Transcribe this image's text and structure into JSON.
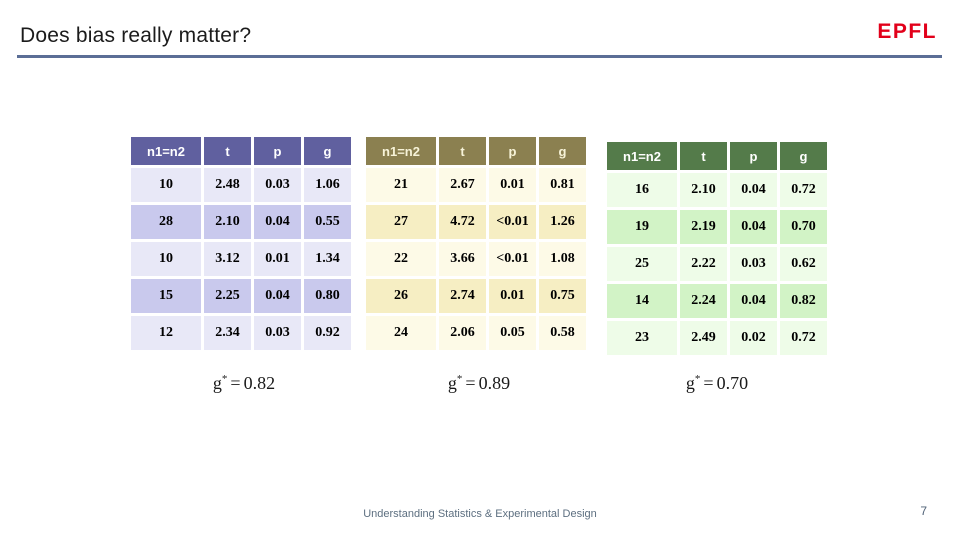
{
  "slide": {
    "title": "Does bias really matter?",
    "logo_text": "EPFL",
    "footer": "Understanding Statistics & Experimental Design",
    "page_number": "7"
  },
  "accent_colors": {
    "title_underline": "#5b6e96",
    "epfl_red": "#e2001a",
    "footer_gray_blue": "#5d6f80"
  },
  "tables": [
    {
      "name": "purple-table",
      "colors": {
        "header": "#60609f",
        "header_text": "#ffffff",
        "row_dark": "#c9c9ed",
        "row_light": "#e8e8f7"
      },
      "headers": [
        "n1=n2",
        "t",
        "p",
        "g"
      ],
      "rows": [
        [
          "10",
          "2.48",
          "0.03",
          "1.06"
        ],
        [
          "28",
          "2.10",
          "0.04",
          "0.55"
        ],
        [
          "10",
          "3.12",
          "0.01",
          "1.34"
        ],
        [
          "15",
          "2.25",
          "0.04",
          "0.80"
        ],
        [
          "12",
          "2.34",
          "0.03",
          "0.92"
        ]
      ],
      "summary": {
        "symbol": "g",
        "sup": "*",
        "equals": "=",
        "value": "0.82"
      }
    },
    {
      "name": "olive-table",
      "colors": {
        "header": "#8b8050",
        "header_text": "#f7f3d8",
        "row_dark": "#f6eec3",
        "row_light": "#fdfae7"
      },
      "headers": [
        "n1=n2",
        "t",
        "p",
        "g"
      ],
      "rows": [
        [
          "21",
          "2.67",
          "0.01",
          "0.81"
        ],
        [
          "27",
          "4.72",
          "<0.01",
          "1.26"
        ],
        [
          "22",
          "3.66",
          "<0.01",
          "1.08"
        ],
        [
          "26",
          "2.74",
          "0.01",
          "0.75"
        ],
        [
          "24",
          "2.06",
          "0.05",
          "0.58"
        ]
      ],
      "summary": {
        "symbol": "g",
        "sup": "*",
        "equals": "=",
        "value": "0.89"
      }
    },
    {
      "name": "green-table",
      "colors": {
        "header": "#547b4a",
        "header_text": "#ffffff",
        "row_dark": "#d2f3c6",
        "row_light": "#eefce8"
      },
      "headers": [
        "n1=n2",
        "t",
        "p",
        "g"
      ],
      "rows": [
        [
          "16",
          "2.10",
          "0.04",
          "0.72"
        ],
        [
          "19",
          "2.19",
          "0.04",
          "0.70"
        ],
        [
          "25",
          "2.22",
          "0.03",
          "0.62"
        ],
        [
          "14",
          "2.24",
          "0.04",
          "0.82"
        ],
        [
          "23",
          "2.49",
          "0.02",
          "0.72"
        ]
      ],
      "summary": {
        "symbol": "g",
        "sup": "*",
        "equals": "=",
        "value": "0.70"
      }
    }
  ]
}
